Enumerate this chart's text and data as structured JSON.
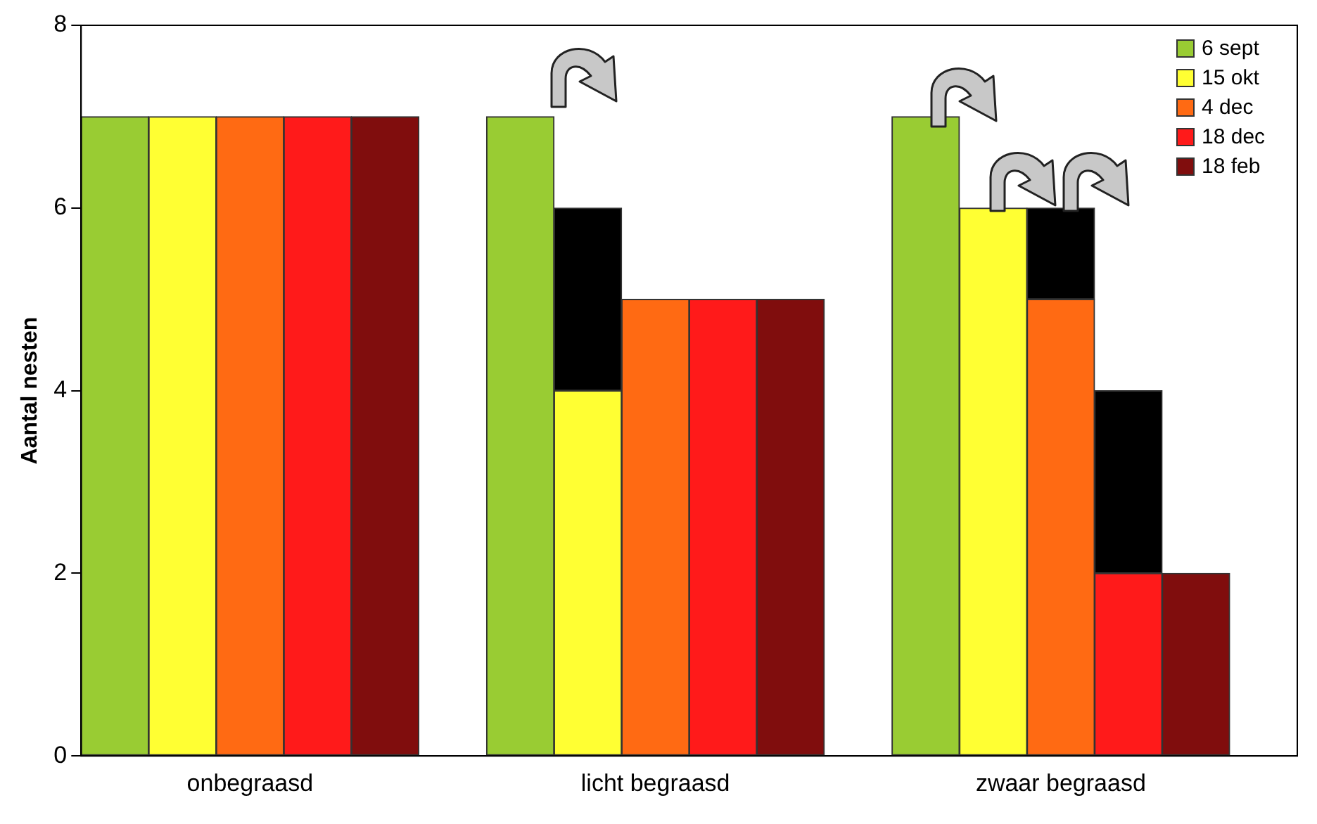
{
  "chart_data": {
    "type": "bar",
    "ylabel": "Aantal nesten",
    "categories": [
      null,
      null,
      "onbegraasd",
      null,
      null,
      null,
      null,
      null,
      "licht begraasd",
      null,
      null,
      null,
      null,
      null,
      "zwaar begraasd",
      null,
      null,
      null
    ],
    "series": [
      {
        "name": "6 sept",
        "color": "#99cc33",
        "values": [
          7,
          null,
          null,
          null,
          null,
          null,
          7,
          null,
          null,
          null,
          null,
          null,
          7,
          null,
          null,
          null,
          null,
          null
        ]
      },
      {
        "name": "15 okt",
        "color": "#ffff33",
        "values": [
          null,
          7,
          null,
          null,
          null,
          null,
          null,
          4,
          null,
          null,
          null,
          null,
          null,
          6,
          null,
          null,
          null,
          null
        ]
      },
      {
        "name": "4 dec",
        "color": "#ff6a13",
        "values": [
          null,
          null,
          7,
          null,
          null,
          null,
          null,
          null,
          5,
          null,
          null,
          null,
          null,
          null,
          5,
          null,
          null,
          null
        ]
      },
      {
        "name": "18 dec",
        "color": "#ff1a1a",
        "values": [
          null,
          null,
          null,
          7,
          null,
          null,
          null,
          null,
          null,
          5,
          null,
          null,
          null,
          null,
          null,
          2,
          null,
          null
        ]
      },
      {
        "name": "18 feb",
        "color": "#800d0d",
        "values": [
          null,
          null,
          null,
          null,
          7,
          null,
          null,
          null,
          null,
          null,
          5,
          null,
          null,
          null,
          null,
          null,
          2,
          null
        ]
      },
      {
        "color": "#000000",
        "values": [
          null,
          null,
          null,
          null,
          null,
          null,
          null,
          2,
          null,
          null,
          null,
          null,
          null,
          null,
          1,
          2,
          null,
          null
        ]
      }
    ],
    "stacked": true,
    "ylim": [
      0,
      8
    ],
    "yticks": [
      0,
      2,
      4,
      6,
      8
    ],
    "grid": false,
    "legend": "top right"
  }
}
